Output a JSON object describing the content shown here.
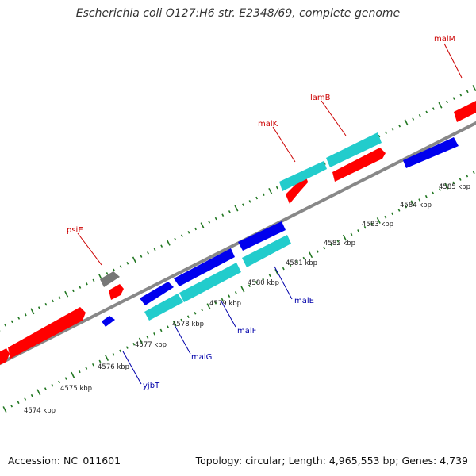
{
  "title": "Escherichia coli O127:H6 str. E2348/69, complete genome",
  "footer": {
    "accession": "Accession: NC_011601",
    "info": "Topology: circular; Length: 4,965,553 bp; Genes: 4,739"
  },
  "colors": {
    "forward_gene": "#ff0000",
    "reverse_gene": "#0000ee",
    "cds_cyan": "#22cccc",
    "other": "#777777",
    "backbone": "#888888",
    "ticks": "#227722",
    "forward_label": "#cc0000",
    "reverse_label": "#0000aa"
  },
  "ticks": [
    {
      "kbp": 4574,
      "label": "4574 kbp"
    },
    {
      "kbp": 4575,
      "label": "4575 kbp"
    },
    {
      "kbp": 4576,
      "label": "4576 kbp"
    },
    {
      "kbp": 4577,
      "label": "4577 kbp"
    },
    {
      "kbp": 4578,
      "label": "4578 kbp"
    },
    {
      "kbp": 4579,
      "label": "4579 kbp"
    },
    {
      "kbp": 4580,
      "label": "4580 kbp"
    },
    {
      "kbp": 4581,
      "label": "4581 kbp"
    },
    {
      "kbp": 4582,
      "label": "4582 kbp"
    },
    {
      "kbp": 4583,
      "label": "4583 kbp"
    },
    {
      "kbp": 4584,
      "label": "4584 kbp"
    },
    {
      "kbp": 4585,
      "label": "4585 kbp"
    }
  ],
  "gene_labels": {
    "forward": [
      "malM",
      "lamB",
      "malK",
      "psiE"
    ],
    "reverse": [
      "malE",
      "malF",
      "malG",
      "yjbT"
    ]
  }
}
